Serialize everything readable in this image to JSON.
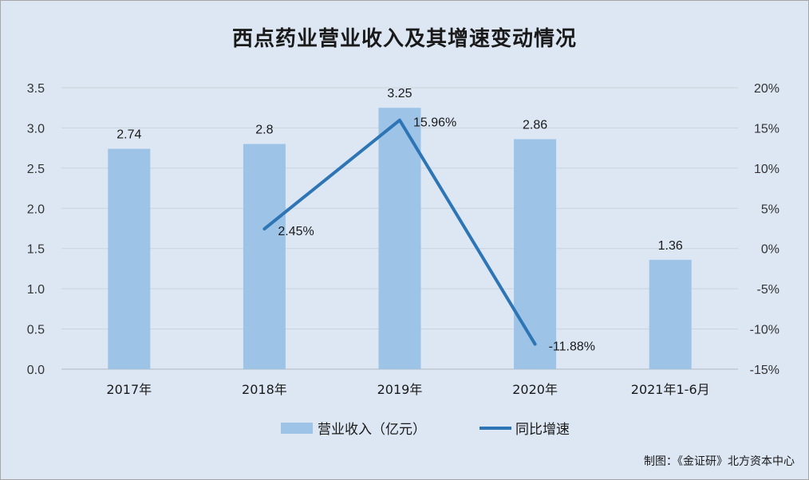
{
  "title": "西点药业营业收入及其增速变动情况",
  "source": "制图：《金证研》北方资本中心",
  "colors": {
    "bar": "#9dc3e6",
    "line": "#2e75b6",
    "grid": "#c9d3de",
    "background": "#dce7f3"
  },
  "chart_data": {
    "type": "bar+line",
    "categories": [
      "2017年",
      "2018年",
      "2019年",
      "2020年",
      "2021年1-6月"
    ],
    "series": [
      {
        "name": "营业收入（亿元）",
        "type": "bar",
        "axis": "left",
        "values": [
          2.74,
          2.8,
          3.25,
          2.86,
          1.36
        ],
        "labels": [
          "2.74",
          "2.8",
          "3.25",
          "2.86",
          "1.36"
        ]
      },
      {
        "name": "同比增速",
        "type": "line",
        "axis": "right",
        "values": [
          null,
          2.45,
          15.96,
          -11.88,
          null
        ],
        "labels": [
          "",
          "2.45%",
          "15.96%",
          "-11.88%",
          ""
        ]
      }
    ],
    "left_axis": {
      "min": 0,
      "max": 3.5,
      "ticks": [
        "0.0",
        "0.5",
        "1.0",
        "1.5",
        "2.0",
        "2.5",
        "3.0",
        "3.5"
      ]
    },
    "right_axis": {
      "min": -15,
      "max": 20,
      "ticks": [
        "-15%",
        "-10%",
        "-5%",
        "0%",
        "5%",
        "10%",
        "15%",
        "20%"
      ]
    },
    "grid": true,
    "legend": "bottom"
  }
}
